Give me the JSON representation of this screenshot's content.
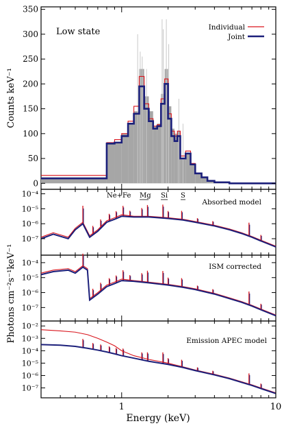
{
  "colors": {
    "individual": "#d9141c",
    "joint": "#1b1f7a",
    "bars": "#a6a6a6",
    "frame": "#000000"
  },
  "chart_data": [
    {
      "type": "bar",
      "panel": "top",
      "annotation": "Low state",
      "ylabel": "Counts keV⁻¹",
      "ylim": [
        -12,
        355
      ],
      "yticks": [
        0,
        50,
        100,
        150,
        200,
        250,
        300,
        350
      ],
      "xscale": "log",
      "xlim": [
        0.3,
        10
      ],
      "legend_position": "top-right",
      "legend": [
        "Individual",
        "Joint"
      ],
      "data_bins": {
        "edges": [
          0.3,
          0.8,
          0.9,
          1.0,
          1.1,
          1.2,
          1.3,
          1.4,
          1.5,
          1.6,
          1.7,
          1.8,
          1.9,
          2.0,
          2.1,
          2.2,
          2.3,
          2.4,
          2.6,
          2.8,
          3.0,
          3.3,
          3.6,
          4.0,
          5.0,
          10.0
        ],
        "values": [
          12,
          80,
          83,
          100,
          120,
          145,
          230,
          175,
          145,
          115,
          120,
          180,
          230,
          155,
          110,
          100,
          105,
          48,
          60,
          40,
          20,
          12,
          5,
          2,
          0
        ]
      },
      "series": [
        {
          "name": "Individual",
          "edges": [
            0.3,
            0.8,
            0.9,
            1.0,
            1.1,
            1.2,
            1.3,
            1.4,
            1.5,
            1.6,
            1.7,
            1.8,
            1.9,
            2.0,
            2.1,
            2.2,
            2.3,
            2.4,
            2.6,
            2.8,
            3.0,
            3.3,
            3.6,
            4.0,
            5.0,
            10.0
          ],
          "values": [
            16,
            82,
            88,
            100,
            125,
            155,
            215,
            160,
            130,
            115,
            118,
            170,
            210,
            140,
            105,
            95,
            105,
            55,
            65,
            40,
            20,
            12,
            5,
            2,
            0
          ]
        },
        {
          "name": "Joint",
          "edges": [
            0.3,
            0.8,
            0.9,
            1.0,
            1.1,
            1.2,
            1.3,
            1.4,
            1.5,
            1.6,
            1.7,
            1.8,
            1.9,
            2.0,
            2.1,
            2.2,
            2.3,
            2.4,
            2.6,
            2.8,
            3.0,
            3.3,
            3.6,
            4.0,
            5.0,
            10.0
          ],
          "values": [
            10,
            80,
            82,
            95,
            120,
            140,
            195,
            150,
            125,
            110,
            115,
            160,
            200,
            130,
            95,
            85,
            95,
            50,
            60,
            38,
            20,
            12,
            5,
            2,
            0
          ]
        }
      ],
      "line_labels": [
        "Ne+Fe",
        "Mg",
        "Si",
        "S"
      ],
      "line_label_energies": [
        1.02,
        1.38,
        1.9,
        2.5
      ]
    },
    {
      "type": "line",
      "panel": "absorbed",
      "annotation": "Absorbed model",
      "xscale": "log",
      "yscale": "log",
      "xlim": [
        0.3,
        10
      ],
      "ylim_exp": [
        -8.1,
        -3.7
      ],
      "yticks": [
        "10⁻⁴",
        "10⁻⁵",
        "10⁻⁶",
        "10⁻⁷"
      ],
      "ytick_exps": [
        -4,
        -5,
        -6,
        -7
      ],
      "series": [
        {
          "name": "Individual",
          "x": [
            0.3,
            0.36,
            0.45,
            0.5,
            0.56,
            0.62,
            0.7,
            0.8,
            0.9,
            1.0,
            1.2,
            1.5,
            2.0,
            2.5,
            3.0,
            4.0,
            5.0,
            6.0,
            7.0,
            8.0,
            10.0
          ],
          "y_exp": [
            -6.9,
            -6.6,
            -6.9,
            -6.3,
            -5.9,
            -6.8,
            -6.4,
            -5.8,
            -5.6,
            -5.4,
            -5.5,
            -5.5,
            -5.6,
            -5.7,
            -5.85,
            -6.1,
            -6.35,
            -6.6,
            -6.85,
            -7.1,
            -7.5
          ]
        },
        {
          "name": "Joint",
          "x": [
            0.3,
            0.36,
            0.45,
            0.5,
            0.56,
            0.62,
            0.7,
            0.8,
            0.9,
            1.0,
            1.2,
            1.5,
            2.0,
            2.5,
            3.0,
            4.0,
            5.0,
            6.0,
            7.0,
            8.0,
            10.0
          ],
          "y_exp": [
            -7.0,
            -6.7,
            -7.0,
            -6.4,
            -6.0,
            -6.9,
            -6.5,
            -5.9,
            -5.7,
            -5.5,
            -5.55,
            -5.55,
            -5.65,
            -5.75,
            -5.9,
            -6.15,
            -6.4,
            -6.65,
            -6.9,
            -7.15,
            -7.55
          ]
        }
      ],
      "lines": [
        {
          "e": 0.56,
          "d": 1.2
        },
        {
          "e": 0.65,
          "d": 0.6
        },
        {
          "e": 0.73,
          "d": 0.6
        },
        {
          "e": 0.83,
          "d": 0.5
        },
        {
          "e": 0.92,
          "d": 0.5
        },
        {
          "e": 1.02,
          "d": 0.7
        },
        {
          "e": 1.13,
          "d": 0.4
        },
        {
          "e": 1.35,
          "d": 0.6
        },
        {
          "e": 1.47,
          "d": 0.8
        },
        {
          "e": 1.85,
          "d": 0.9
        },
        {
          "e": 2.0,
          "d": 0.5
        },
        {
          "e": 2.45,
          "d": 0.6
        },
        {
          "e": 3.1,
          "d": 0.3
        },
        {
          "e": 3.9,
          "d": 0.3
        },
        {
          "e": 6.7,
          "d": 0.9
        },
        {
          "e": 8.0,
          "d": 0.4
        }
      ]
    },
    {
      "type": "line",
      "panel": "ism",
      "annotation": "ISM corrected",
      "xscale": "log",
      "yscale": "log",
      "xlim": [
        0.3,
        10
      ],
      "ylim_exp": [
        -7.9,
        -3.5
      ],
      "yticks": [
        "10⁻⁴",
        "10⁻⁵",
        "10⁻⁶",
        "10⁻⁷"
      ],
      "ytick_exps": [
        -4,
        -5,
        -6,
        -7
      ],
      "series": [
        {
          "name": "Individual",
          "x": [
            0.3,
            0.36,
            0.45,
            0.5,
            0.56,
            0.6,
            0.62,
            0.7,
            0.8,
            0.9,
            1.0,
            1.2,
            1.5,
            2.0,
            2.5,
            3.0,
            4.0,
            5.0,
            6.0,
            7.0,
            8.0,
            10.0
          ],
          "y_exp": [
            -4.7,
            -4.5,
            -4.4,
            -4.6,
            -4.2,
            -4.4,
            -6.4,
            -6.0,
            -5.5,
            -5.3,
            -5.1,
            -5.2,
            -5.3,
            -5.45,
            -5.6,
            -5.75,
            -6.05,
            -6.35,
            -6.6,
            -6.85,
            -7.1,
            -7.5
          ]
        },
        {
          "name": "Joint",
          "x": [
            0.3,
            0.36,
            0.45,
            0.5,
            0.56,
            0.6,
            0.62,
            0.7,
            0.8,
            0.9,
            1.0,
            1.2,
            1.5,
            2.0,
            2.5,
            3.0,
            4.0,
            5.0,
            6.0,
            7.0,
            8.0,
            10.0
          ],
          "y_exp": [
            -4.8,
            -4.6,
            -4.5,
            -4.7,
            -4.3,
            -4.5,
            -6.5,
            -6.1,
            -5.6,
            -5.4,
            -5.2,
            -5.25,
            -5.35,
            -5.5,
            -5.65,
            -5.8,
            -6.1,
            -6.4,
            -6.65,
            -6.9,
            -7.15,
            -7.55
          ]
        }
      ],
      "lines": [
        {
          "e": 0.56,
          "d": 0.9
        },
        {
          "e": 0.65,
          "d": 0.6
        },
        {
          "e": 0.73,
          "d": 0.6
        },
        {
          "e": 0.83,
          "d": 0.5
        },
        {
          "e": 0.92,
          "d": 0.5
        },
        {
          "e": 1.02,
          "d": 0.7
        },
        {
          "e": 1.13,
          "d": 0.4
        },
        {
          "e": 1.35,
          "d": 0.6
        },
        {
          "e": 1.47,
          "d": 0.8
        },
        {
          "e": 1.85,
          "d": 0.9
        },
        {
          "e": 2.0,
          "d": 0.5
        },
        {
          "e": 2.45,
          "d": 0.6
        },
        {
          "e": 3.1,
          "d": 0.3
        },
        {
          "e": 3.9,
          "d": 0.3
        },
        {
          "e": 6.7,
          "d": 0.9
        },
        {
          "e": 8.0,
          "d": 0.4
        }
      ]
    },
    {
      "type": "line",
      "panel": "apec",
      "annotation": "Emission APEC model",
      "xlabel": "Energy (keV)",
      "ylabel": "Photons cm⁻²s⁻¹keV⁻¹",
      "xscale": "log",
      "yscale": "log",
      "xlim": [
        0.3,
        10
      ],
      "xticks": [
        1,
        10
      ],
      "ylim_exp": [
        -7.8,
        -1.6
      ],
      "yticks": [
        "10⁻²",
        "10⁻³",
        "10⁻⁴",
        "10⁻⁵",
        "10⁻⁶",
        "10⁻⁷"
      ],
      "ytick_exps": [
        -2,
        -3,
        -4,
        -5,
        -6,
        -7
      ],
      "series": [
        {
          "name": "Individual",
          "x": [
            0.3,
            0.4,
            0.5,
            0.6,
            0.7,
            0.8,
            0.9,
            1.0,
            1.2,
            1.5,
            2.0,
            2.5,
            3.0,
            4.0,
            5.0,
            6.0,
            7.0,
            8.0,
            10.0
          ],
          "y_exp": [
            -2.3,
            -2.4,
            -2.5,
            -2.7,
            -3.0,
            -3.3,
            -3.6,
            -4.0,
            -4.4,
            -4.7,
            -5.0,
            -5.3,
            -5.55,
            -5.9,
            -6.2,
            -6.5,
            -6.75,
            -7.0,
            -7.4
          ]
        },
        {
          "name": "Joint",
          "x": [
            0.3,
            0.4,
            0.5,
            0.6,
            0.7,
            0.8,
            0.9,
            1.0,
            1.2,
            1.5,
            2.0,
            2.5,
            3.0,
            4.0,
            5.0,
            6.0,
            7.0,
            8.0,
            10.0
          ],
          "y_exp": [
            -3.5,
            -3.55,
            -3.65,
            -3.8,
            -3.95,
            -4.1,
            -4.25,
            -4.4,
            -4.6,
            -4.85,
            -5.1,
            -5.35,
            -5.6,
            -5.95,
            -6.25,
            -6.55,
            -6.8,
            -7.05,
            -7.45
          ]
        }
      ],
      "lines": [
        {
          "e": 0.56,
          "d": 0.7
        },
        {
          "e": 0.65,
          "d": 0.5
        },
        {
          "e": 0.73,
          "d": 0.5
        },
        {
          "e": 0.83,
          "d": 0.5
        },
        {
          "e": 0.92,
          "d": 0.5
        },
        {
          "e": 1.02,
          "d": 0.6
        },
        {
          "e": 1.35,
          "d": 0.6
        },
        {
          "e": 1.47,
          "d": 0.7
        },
        {
          "e": 1.85,
          "d": 0.9
        },
        {
          "e": 2.0,
          "d": 0.5
        },
        {
          "e": 2.45,
          "d": 0.6
        },
        {
          "e": 3.1,
          "d": 0.3
        },
        {
          "e": 3.9,
          "d": 0.3
        },
        {
          "e": 6.7,
          "d": 0.9
        },
        {
          "e": 8.0,
          "d": 0.4
        }
      ]
    }
  ]
}
